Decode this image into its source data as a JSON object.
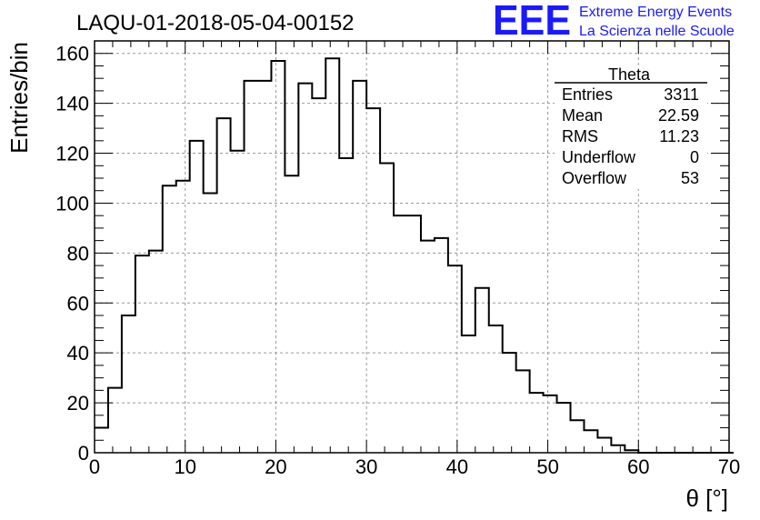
{
  "chart_data": {
    "type": "histogram",
    "title": "LAQU-01-2018-05-04-00152",
    "xlabel": "θ [°]",
    "ylabel": "Entries/bin",
    "xlim": [
      0,
      70
    ],
    "ylim": [
      0,
      165
    ],
    "x_ticks": [
      0,
      10,
      20,
      30,
      40,
      50,
      60,
      70
    ],
    "y_ticks": [
      0,
      20,
      40,
      60,
      80,
      100,
      120,
      140,
      160
    ],
    "grid": true,
    "bin_width": 1.5,
    "bins_start": 0,
    "values": [
      10,
      26,
      55,
      79,
      81,
      107,
      109,
      125,
      104,
      134,
      121,
      149,
      149,
      157,
      111,
      148,
      142,
      158,
      118,
      149,
      138,
      116,
      95,
      95,
      85,
      86,
      75,
      47,
      66,
      51,
      40,
      33,
      24,
      23,
      20,
      13,
      9,
      6,
      3,
      1,
      0,
      0,
      0,
      0,
      0,
      0,
      0
    ],
    "stats_box": {
      "name": "Theta",
      "rows": [
        {
          "label": "Entries",
          "value": "3311"
        },
        {
          "label": "Mean",
          "value": "22.59"
        },
        {
          "label": "RMS",
          "value": "11.23"
        },
        {
          "label": "Underflow",
          "value": "0"
        },
        {
          "label": "Overflow",
          "value": "53"
        }
      ]
    }
  },
  "logo": {
    "mark": "EEE",
    "line1": "Extreme Energy Events",
    "line2": "La Scienza nelle Scuole",
    "color": "#1a1aff"
  },
  "colors": {
    "line": "#000000",
    "grid": "#999999",
    "background": "#ffffff"
  }
}
